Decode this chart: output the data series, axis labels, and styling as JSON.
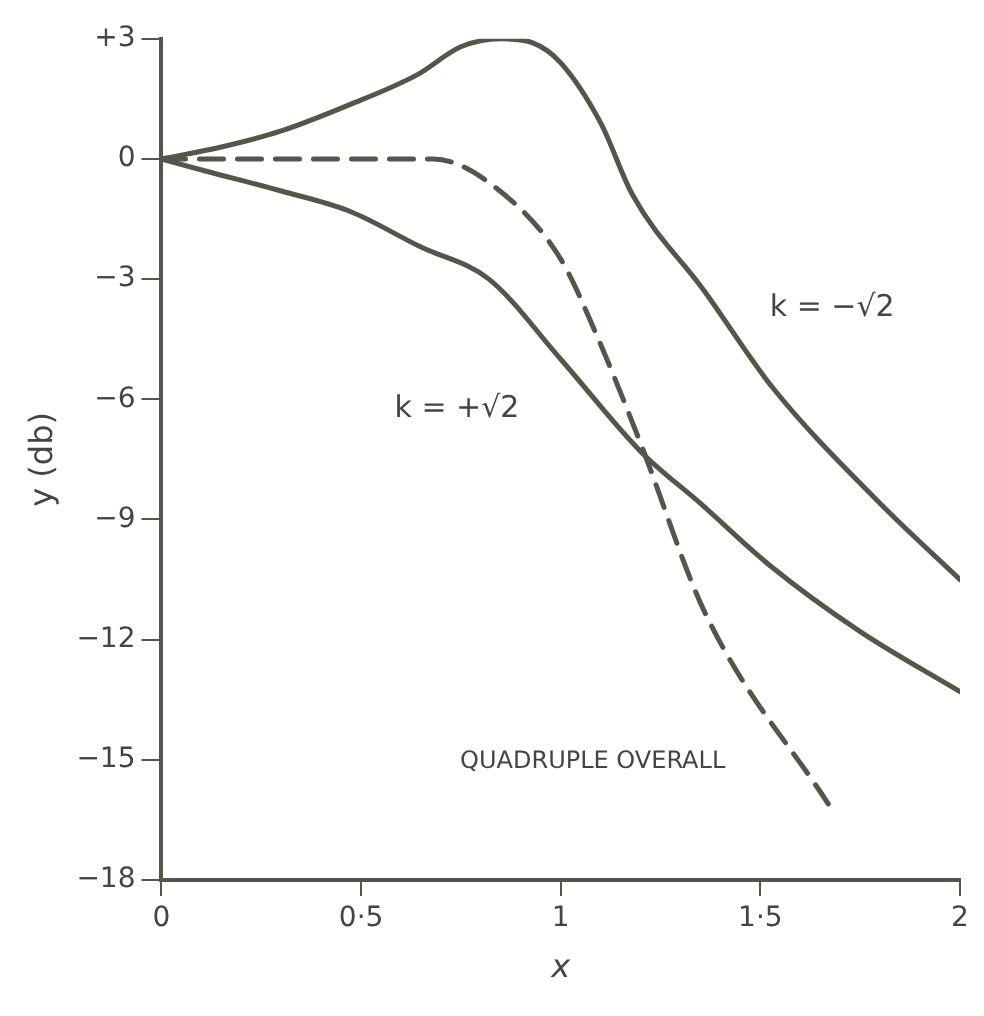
{
  "chart_data": {
    "type": "line",
    "xlabel": "x",
    "ylabel": "y (db)",
    "xlim": [
      0,
      2
    ],
    "xticks": [
      0,
      {
        "value": 0.5,
        "label": "0·5"
      },
      1,
      {
        "value": 1.5,
        "label": "1·5"
      },
      2
    ],
    "ylim": [
      -18,
      3
    ],
    "yticks": [
      {
        "value": 3,
        "label": "+3"
      },
      0,
      {
        "value": -3,
        "label": "−3"
      },
      {
        "value": -6,
        "label": "−6"
      },
      {
        "value": -9,
        "label": "−9"
      },
      {
        "value": -12,
        "label": "−12"
      },
      {
        "value": -15,
        "label": "−15"
      },
      {
        "value": -18,
        "label": "−18"
      }
    ],
    "grid": false,
    "legend": false,
    "marker": "none",
    "series": [
      {
        "name": "k = −√2",
        "color": "#55554a",
        "line_style": "solid",
        "x": [
          0,
          0.15,
          0.3,
          0.47,
          0.64,
          0.75,
          0.85,
          0.93,
          1.0,
          1.1,
          1.18,
          1.36,
          1.53,
          1.8,
          2.0
        ],
        "values": [
          0,
          0.3,
          0.7,
          1.35,
          2.1,
          2.8,
          3.0,
          2.9,
          2.4,
          0.9,
          -0.9,
          -3.3,
          -5.7,
          -8.6,
          -10.5
        ]
      },
      {
        "name": "k = +√2",
        "color": "#55554a",
        "line_style": "solid",
        "x": [
          0,
          0.11,
          0.3,
          0.47,
          0.65,
          0.82,
          1.0,
          1.2,
          1.35,
          1.53,
          1.75,
          2.0
        ],
        "values": [
          0,
          -0.3,
          -0.8,
          -1.3,
          -2.2,
          -3.0,
          -5.0,
          -7.3,
          -8.6,
          -10.2,
          -11.8,
          -13.3
        ]
      },
      {
        "color": "#55554a",
        "line_style": "dashed",
        "x": [
          0,
          0.5,
          0.68,
          0.86,
          1.0,
          1.09,
          1.2,
          1.36,
          1.67
        ],
        "values": [
          0,
          0,
          0,
          -0.9,
          -2.5,
          -4.4,
          -7.1,
          -11.3,
          -16.1
        ]
      }
    ],
    "annotations": [
      "QUADRUPLE OVERALL"
    ]
  }
}
